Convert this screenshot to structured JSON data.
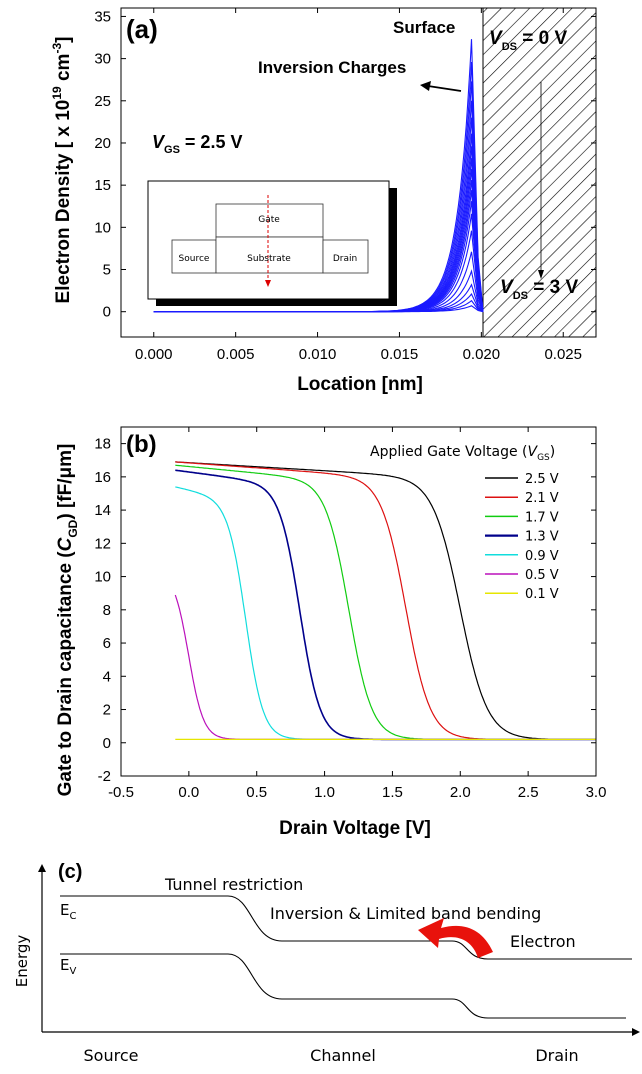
{
  "chart_data": [
    {
      "panel": "(a)",
      "type": "line",
      "xlabel": "Location [nm]",
      "ylabel_prefix": "Electron Density [ x 10",
      "ylabel_exp": "19",
      "ylabel_unit": " cm",
      "ylabel_unit_exp": "-3",
      "ylabel_suffix": "]",
      "xlim": [
        -0.002,
        0.027
      ],
      "ylim": [
        -3,
        36
      ],
      "xticks": [
        "0.000",
        "0.005",
        "0.010",
        "0.015",
        "0.020",
        "0.025"
      ],
      "xtick_values": [
        0,
        0.005,
        0.01,
        0.015,
        0.02,
        0.025
      ],
      "yticks": [
        "0",
        "5",
        "10",
        "15",
        "20",
        "25",
        "30",
        "35"
      ],
      "ytick_values": [
        0,
        5,
        10,
        15,
        20,
        25,
        30,
        35
      ],
      "series_color": "#1a1aff",
      "peak_location": 0.0194,
      "oxide_start": 0.0198,
      "peaks": [
        32.3,
        29.6,
        27.3,
        25.0,
        23.0,
        21.1,
        19.6,
        18.2,
        16.9,
        15.6,
        14.4,
        13.1,
        11.6,
        9.6,
        7.1,
        4.8,
        3.2,
        2.1,
        1.3,
        0.7
      ],
      "annotations": {
        "surface": "Surface",
        "inversion": "Inversion Charges",
        "vgs_symbol": "V",
        "vgs_sub": "GS",
        "vgs_value": " = 2.5 V",
        "vds_top_symbol": "V",
        "vds_top_sub": "DS",
        "vds_top_value": " = 0 V",
        "vds_bot_symbol": "V",
        "vds_bot_sub": "DS",
        "vds_bot_value": " = 3 V"
      },
      "inset": {
        "gate": "Gate",
        "source": "Source",
        "substrate": "Substrate",
        "drain": "Drain"
      }
    },
    {
      "panel": "(b)",
      "type": "line",
      "xlabel": "Drain Voltage [V]",
      "ylabel_prefix": "Gate to Drain capacitance (",
      "ylabel_symbol": "C",
      "ylabel_sub": "GD",
      "ylabel_suffix": ") [fF/μm]",
      "xlim": [
        -0.5,
        3.0
      ],
      "ylim": [
        -2,
        19
      ],
      "xticks": [
        "-0.5",
        "0.0",
        "0.5",
        "1.0",
        "1.5",
        "2.0",
        "2.5",
        "3.0"
      ],
      "xtick_values": [
        -0.5,
        0,
        0.5,
        1.0,
        1.5,
        2.0,
        2.5,
        3.0
      ],
      "yticks": [
        "-2",
        "0",
        "2",
        "4",
        "6",
        "8",
        "10",
        "12",
        "14",
        "16",
        "18"
      ],
      "ytick_values": [
        -2,
        0,
        2,
        4,
        6,
        8,
        10,
        12,
        14,
        16,
        18
      ],
      "legend_title": "Applied Gate Voltage (",
      "legend_title_symbol": "V",
      "legend_title_sub": "GS",
      "legend_title_end": ")",
      "legend_location": "top-right",
      "baseline": 0.2,
      "series": [
        {
          "name": "2.5 V",
          "color": "#000000",
          "start": 16.9,
          "knee": 2.0,
          "width": 0.1
        },
        {
          "name": "2.1 V",
          "color": "#dd1111",
          "start": 16.9,
          "knee": 1.6,
          "width": 0.09
        },
        {
          "name": "1.7 V",
          "color": "#11cc11",
          "start": 16.7,
          "knee": 1.18,
          "width": 0.085
        },
        {
          "name": "1.3 V",
          "color": "#00008b",
          "start": 16.4,
          "knee": 0.82,
          "width": 0.075
        },
        {
          "name": "0.9 V",
          "color": "#11dddd",
          "start": 15.4,
          "knee": 0.42,
          "width": 0.065
        },
        {
          "name": "0.5 V",
          "color": "#bb11bb",
          "start": 10.3,
          "knee": 0.0,
          "width": 0.055
        },
        {
          "name": "0.1 V",
          "color": "#e6e600",
          "start": 0.2,
          "knee": -1.0,
          "width": 0.05
        }
      ]
    },
    {
      "panel": "(c)",
      "type": "diagram",
      "ylabel": "Energy",
      "ec_label": "E",
      "ec_sub": "C",
      "ev_label": "E",
      "ev_sub": "V",
      "regions": [
        "Source",
        "Channel",
        "Drain"
      ],
      "annotations": {
        "tunnel": "Tunnel restriction",
        "inversion": "Inversion & Limited band bending",
        "electron": "Electron"
      },
      "arrow_color": "#e8120c"
    }
  ]
}
